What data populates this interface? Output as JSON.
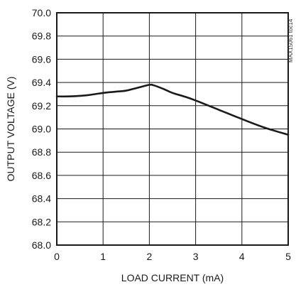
{
  "chart_data": {
    "type": "line",
    "xlabel": "LOAD CURRENT (mA)",
    "ylabel": "OUTPUT VOLTAGE (V)",
    "xlim": [
      0,
      5
    ],
    "ylim": [
      68.0,
      70.0
    ],
    "x_ticks": [
      0,
      1,
      2,
      3,
      4,
      5
    ],
    "y_ticks": [
      68.0,
      68.2,
      68.4,
      68.6,
      68.8,
      69.0,
      69.2,
      69.4,
      69.6,
      69.8,
      70.0
    ],
    "x_tick_labels": [
      "0",
      "1",
      "2",
      "3",
      "4",
      "5"
    ],
    "y_tick_labels": [
      "68.0",
      "68.2",
      "68.4",
      "68.6",
      "68.8",
      "69.0",
      "69.2",
      "69.4",
      "69.6",
      "69.8",
      "70.0"
    ],
    "grid": true,
    "chart_code": "MAX15061 toc14",
    "series": [
      {
        "x": [
          0,
          0.25,
          0.5,
          0.75,
          1.0,
          1.25,
          1.5,
          1.75,
          2.0,
          2.1,
          2.3,
          2.5,
          2.75,
          3.0,
          3.5,
          4.0,
          4.5,
          5.0
        ],
        "y": [
          69.28,
          69.28,
          69.285,
          69.295,
          69.31,
          69.32,
          69.33,
          69.355,
          69.38,
          69.375,
          69.345,
          69.31,
          69.28,
          69.245,
          69.165,
          69.085,
          69.01,
          68.95
        ]
      }
    ],
    "colors": {
      "line": "#1a1a1a",
      "grid": "#1a1a1a",
      "axis": "#1a1a1a"
    }
  }
}
